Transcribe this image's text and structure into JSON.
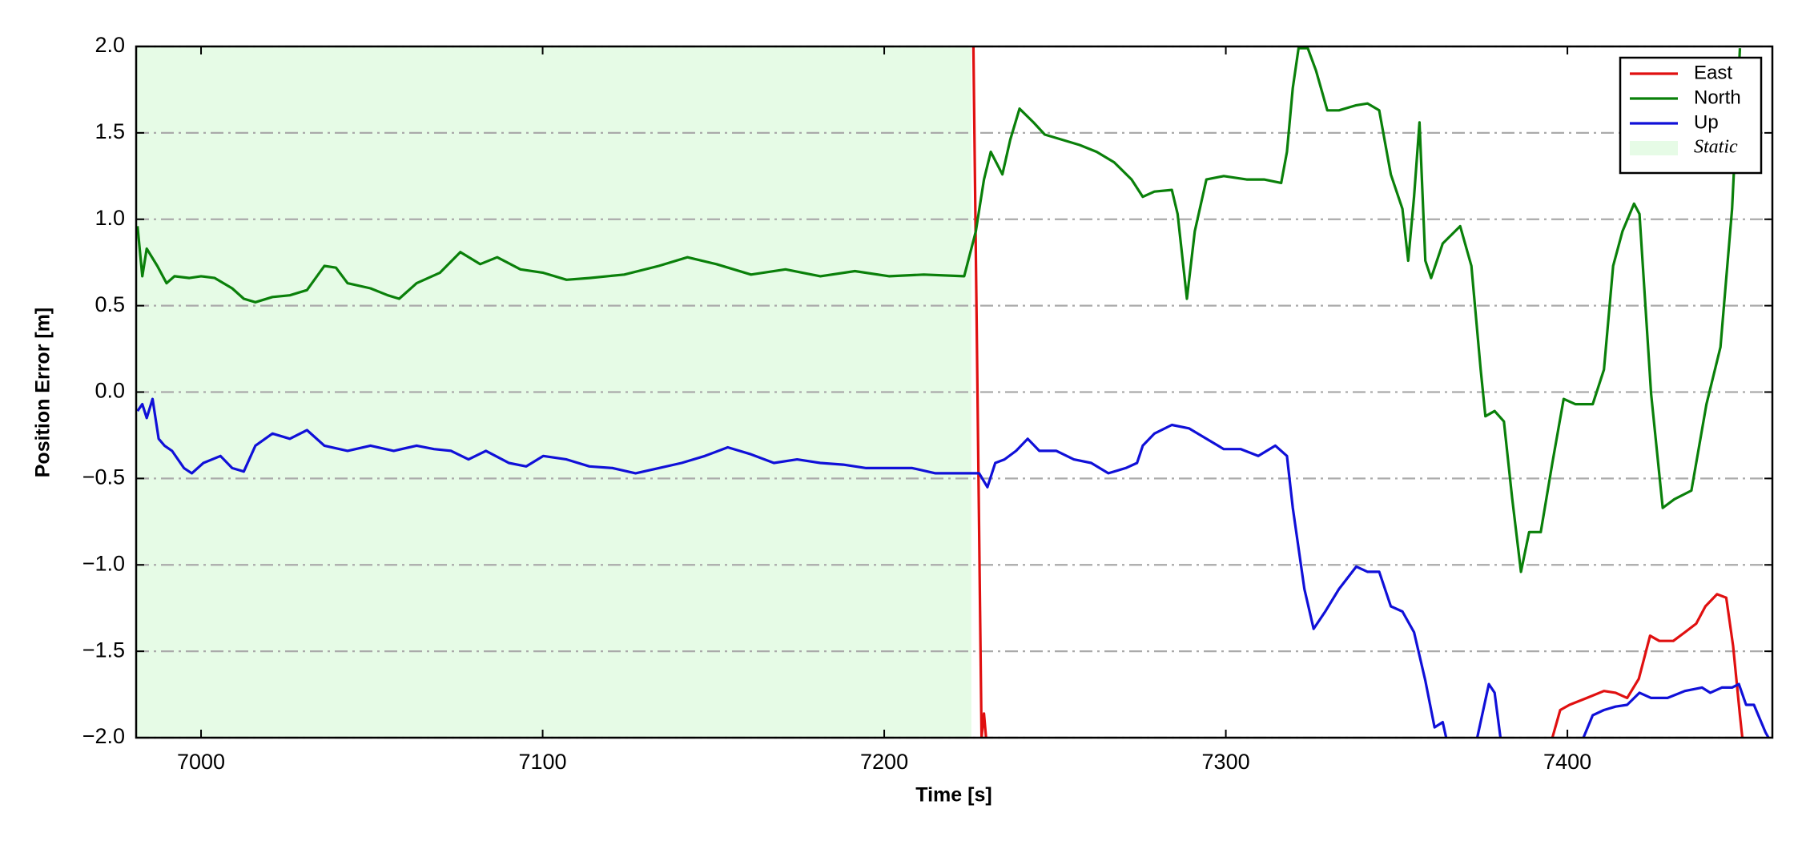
{
  "chart_data": {
    "type": "line",
    "xlabel": "Time [s]",
    "ylabel": "Position Error [m]",
    "xlim": [
      6981,
      7460
    ],
    "ylim": [
      -2.0,
      2.0
    ],
    "xticks": [
      7000,
      7100,
      7200,
      7300,
      7400
    ],
    "yticks": [
      {
        "value": -2,
        "label": "−2.0"
      },
      {
        "value": -1.5,
        "label": "−1.5"
      },
      {
        "value": -1,
        "label": "−1.0"
      },
      {
        "value": -0.5,
        "label": "−0.5"
      },
      {
        "value": 0,
        "label": "0.0"
      },
      {
        "value": 0.5,
        "label": "0.5"
      },
      {
        "value": 1,
        "label": "1.0"
      },
      {
        "value": 1.5,
        "label": "1.5"
      },
      {
        "value": 2,
        "label": "2.0"
      }
    ],
    "grid": true,
    "legend": "upper right",
    "spans": [
      {
        "name": "Static",
        "color": "#e6fbe6",
        "x": [
          6981,
          7225.5
        ]
      }
    ],
    "series": [
      {
        "name": "East",
        "color": "#e01010",
        "x": [
          7226.1,
          7228.5,
          7229.2,
          7229.8,
          null,
          7395.6,
          7397.9,
          7400.6,
          7405.7,
          7410.7,
          7414.1,
          7417.5,
          7420.9,
          7424.2,
          7426.9,
          7431.0,
          7434.4,
          7437.7,
          7440.4,
          7443.8,
          7446.5,
          7448.5,
          7450.5,
          7451.2
        ],
        "values": [
          2.0,
          -2.0,
          -1.86,
          -2.0,
          null,
          -2.0,
          -1.84,
          -1.81,
          -1.77,
          -1.73,
          -1.74,
          -1.77,
          -1.66,
          -1.41,
          -1.44,
          -1.44,
          -1.39,
          -1.34,
          -1.24,
          -1.17,
          -1.19,
          -1.47,
          -1.87,
          -2.0
        ]
      },
      {
        "name": "North",
        "color": "#0a800a",
        "x": [
          6981.4,
          6982.8,
          6984.1,
          6987.2,
          6989.9,
          6992.2,
          6996.6,
          7000.0,
          7004.0,
          7009.1,
          7012.5,
          7015.9,
          7020.9,
          7026.0,
          7031.0,
          7036.1,
          7039.5,
          7042.9,
          7049.6,
          7054.7,
          7058.0,
          7063.1,
          7069.9,
          7075.9,
          7081.7,
          7086.7,
          7093.5,
          7100.2,
          7107.0,
          7113.7,
          7123.9,
          7134.0,
          7142.4,
          7150.9,
          7161.0,
          7171.1,
          7181.3,
          7191.4,
          7201.5,
          7211.6,
          7223.4,
          7226.8,
          7229.2,
          7231.2,
          7234.6,
          7236.9,
          7239.6,
          7243.7,
          7247.0,
          7252.1,
          7257.2,
          7262.2,
          7267.3,
          7272.4,
          7275.7,
          7279.1,
          7284.2,
          7285.9,
          7288.6,
          7290.9,
          7294.3,
          7299.4,
          7306.1,
          7311.2,
          7316.2,
          7317.9,
          7319.6,
          7321.3,
          7324.0,
          7326.4,
          7329.7,
          7333.1,
          7338.2,
          7341.5,
          7344.9,
          7348.3,
          7351.7,
          7353.4,
          7355.1,
          7356.7,
          7358.4,
          7360.1,
          7363.5,
          7368.6,
          7371.9,
          7374.6,
          7376.0,
          7378.7,
          7381.4,
          7383.8,
          7386.4,
          7388.8,
          7392.2,
          7395.6,
          7398.9,
          7402.3,
          7407.4,
          7410.7,
          7413.4,
          7416.1,
          7419.5,
          7421.1,
          7424.5,
          7427.9,
          7431.3,
          7436.3,
          7440.7,
          7444.8,
          7448.2,
          7450.5
        ],
        "values": [
          0.96,
          0.67,
          0.83,
          0.73,
          0.63,
          0.67,
          0.66,
          0.67,
          0.66,
          0.6,
          0.54,
          0.52,
          0.55,
          0.56,
          0.59,
          0.73,
          0.72,
          0.63,
          0.6,
          0.56,
          0.54,
          0.63,
          0.69,
          0.81,
          0.74,
          0.78,
          0.71,
          0.69,
          0.65,
          0.66,
          0.68,
          0.73,
          0.78,
          0.74,
          0.68,
          0.71,
          0.67,
          0.7,
          0.67,
          0.68,
          0.67,
          0.93,
          1.23,
          1.39,
          1.26,
          1.46,
          1.64,
          1.56,
          1.49,
          1.46,
          1.43,
          1.39,
          1.33,
          1.23,
          1.13,
          1.16,
          1.17,
          1.03,
          0.54,
          0.93,
          1.23,
          1.25,
          1.23,
          1.23,
          1.21,
          1.39,
          1.76,
          1.99,
          1.99,
          1.86,
          1.63,
          1.63,
          1.66,
          1.67,
          1.63,
          1.26,
          1.06,
          0.76,
          1.13,
          1.56,
          0.76,
          0.66,
          0.86,
          0.96,
          0.73,
          0.13,
          -0.14,
          -0.11,
          -0.17,
          -0.61,
          -1.04,
          -0.81,
          -0.81,
          -0.41,
          -0.04,
          -0.07,
          -0.07,
          0.13,
          0.73,
          0.93,
          1.09,
          1.03,
          -0.01,
          -0.67,
          -0.62,
          -0.57,
          -0.07,
          0.26,
          1.06,
          1.99
        ]
      },
      {
        "name": "Up",
        "color": "#1010d8",
        "x": [
          6981.4,
          6982.8,
          6984.1,
          6985.8,
          6987.6,
          6989.3,
          6991.5,
          6995.0,
          6997.3,
          7000.7,
          7005.7,
          7009.1,
          7012.5,
          7015.9,
          7020.9,
          7026.0,
          7031.0,
          7036.1,
          7042.9,
          7049.6,
          7056.4,
          7063.1,
          7068.2,
          7073.2,
          7078.3,
          7083.4,
          7090.1,
          7095.2,
          7100.2,
          7107.0,
          7113.7,
          7120.5,
          7127.2,
          7134.0,
          7140.7,
          7147.5,
          7154.2,
          7161.0,
          7167.7,
          7174.5,
          7181.3,
          7188.0,
          7194.7,
          7201.5,
          7208.2,
          7215.0,
          7223.4,
          7227.8,
          7230.2,
          7232.5,
          7235.2,
          7238.6,
          7242.0,
          7245.4,
          7250.4,
          7255.5,
          7260.6,
          7265.6,
          7270.7,
          7274.0,
          7275.7,
          7279.1,
          7284.2,
          7289.2,
          7294.3,
          7299.4,
          7304.4,
          7309.5,
          7314.5,
          7317.9,
          7319.6,
          7323.0,
          7325.7,
          7329.1,
          7333.1,
          7338.2,
          7341.5,
          7344.9,
          7348.3,
          7351.7,
          7355.1,
          7358.4,
          7361.1,
          7363.5,
          7364.5,
          null,
          7373.6,
          7377.0,
          7378.7,
          7380.4,
          null,
          7404.7,
          7407.4,
          7410.7,
          7414.1,
          7417.5,
          7421.1,
          7424.5,
          7429.3,
          7434.4,
          7439.4,
          7441.8,
          7445.2,
          7448.2,
          7450.2,
          7452.3,
          7454.6,
          7458.0,
          7460.0
        ],
        "values": [
          -0.11,
          -0.07,
          -0.15,
          -0.04,
          -0.27,
          -0.31,
          -0.34,
          -0.44,
          -0.47,
          -0.41,
          -0.37,
          -0.44,
          -0.46,
          -0.31,
          -0.24,
          -0.27,
          -0.22,
          -0.31,
          -0.34,
          -0.31,
          -0.34,
          -0.31,
          -0.33,
          -0.34,
          -0.39,
          -0.34,
          -0.41,
          -0.43,
          -0.37,
          -0.39,
          -0.43,
          -0.44,
          -0.47,
          -0.44,
          -0.41,
          -0.37,
          -0.32,
          -0.36,
          -0.41,
          -0.39,
          -0.41,
          -0.42,
          -0.44,
          -0.44,
          -0.44,
          -0.47,
          -0.47,
          -0.47,
          -0.55,
          -0.41,
          -0.39,
          -0.34,
          -0.27,
          -0.34,
          -0.34,
          -0.39,
          -0.41,
          -0.47,
          -0.44,
          -0.41,
          -0.31,
          -0.24,
          -0.19,
          -0.21,
          -0.27,
          -0.33,
          -0.33,
          -0.37,
          -0.31,
          -0.37,
          -0.67,
          -1.14,
          -1.37,
          -1.27,
          -1.14,
          -1.01,
          -1.04,
          -1.04,
          -1.24,
          -1.27,
          -1.39,
          -1.67,
          -1.94,
          -1.91,
          -2.0,
          null,
          -2.0,
          -1.69,
          -1.74,
          -2.0,
          null,
          -2.0,
          -1.87,
          -1.84,
          -1.82,
          -1.81,
          -1.74,
          -1.77,
          -1.77,
          -1.73,
          -1.71,
          -1.74,
          -1.71,
          -1.71,
          -1.69,
          -1.81,
          -1.81,
          -1.97,
          -2.04
        ]
      }
    ]
  }
}
